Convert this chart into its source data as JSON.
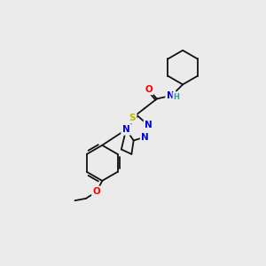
{
  "bg_color": "#ebebeb",
  "atom_colors": {
    "N": "#0000ee",
    "O": "#ff0000",
    "S": "#bbbb00",
    "H": "#339999",
    "C": "#111111"
  },
  "bond_color": "#111111",
  "lw": 1.3,
  "fs": 7.5,
  "fig_width": 3.0,
  "fig_height": 3.0,
  "dpi": 100
}
